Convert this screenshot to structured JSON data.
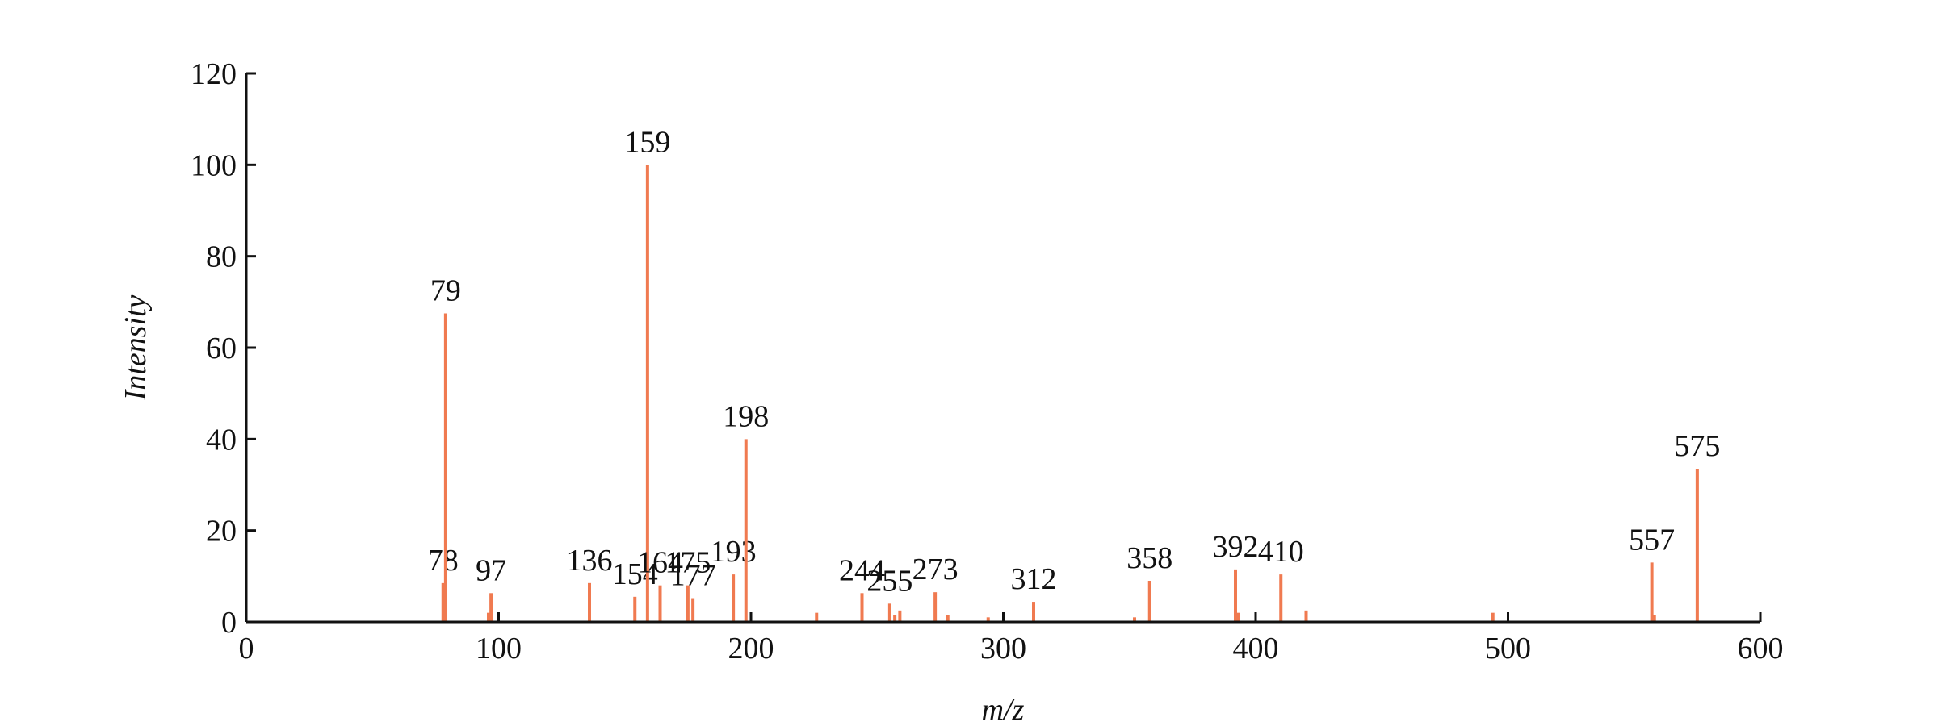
{
  "chart_data": {
    "type": "stem",
    "x_label": "m/z",
    "y_label": "Intensity",
    "x": [
      78,
      79,
      96,
      97,
      136,
      154,
      159,
      164,
      175,
      177,
      193,
      198,
      226,
      244,
      255,
      257,
      259,
      273,
      278,
      294,
      312,
      352,
      358,
      392,
      393,
      410,
      420,
      494,
      557,
      558,
      575
    ],
    "values": [
      8.5,
      67.5,
      2,
      6.3,
      8.5,
      5.5,
      100,
      8,
      8,
      5.2,
      10.4,
      40,
      2,
      6.3,
      4,
      1.5,
      2.5,
      6.5,
      1.5,
      1,
      4.4,
      1,
      9,
      11.5,
      2,
      10.4,
      2.5,
      2,
      13,
      1.5,
      33.5
    ],
    "x_labels": [
      "78",
      "79",
      null,
      "97",
      "136",
      "154",
      "159",
      "164",
      "175",
      "177",
      "193",
      "198",
      null,
      "244",
      "255",
      null,
      null,
      "273",
      null,
      null,
      "312",
      null,
      "358",
      "392",
      null,
      "410",
      null,
      null,
      "557",
      null,
      "575"
    ],
    "color": "#f07a50",
    "xlim": [
      0,
      600
    ],
    "xticks": [
      0,
      100,
      200,
      300,
      400,
      500,
      600
    ],
    "ylim": [
      0,
      120
    ],
    "yticks": [
      0,
      20,
      40,
      60,
      80,
      100,
      120
    ]
  }
}
